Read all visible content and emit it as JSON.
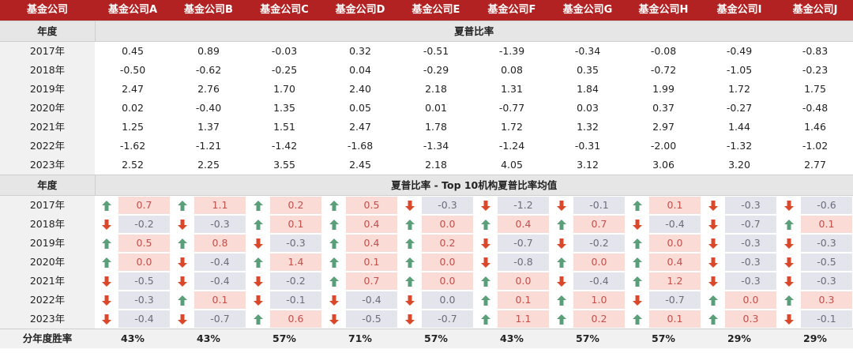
{
  "header": {
    "first_col": "基金公司",
    "companies": [
      "基金公司A",
      "基金公司B",
      "基金公司C",
      "基金公司D",
      "基金公司E",
      "基金公司F",
      "基金公司G",
      "基金公司H",
      "基金公司I",
      "基金公司J"
    ]
  },
  "section1": {
    "year_label": "年度",
    "title": "夏普比率",
    "years": [
      "2017年",
      "2018年",
      "2019年",
      "2020年",
      "2021年",
      "2022年",
      "2023年"
    ],
    "rows": [
      [
        "0.45",
        "0.89",
        "-0.03",
        "0.32",
        "-0.51",
        "-1.39",
        "-0.34",
        "-0.08",
        "-0.49",
        "-0.83"
      ],
      [
        "-0.50",
        "-0.62",
        "-0.25",
        "0.04",
        "-0.29",
        "0.08",
        "0.35",
        "-0.72",
        "-1.05",
        "-0.23"
      ],
      [
        "2.47",
        "2.76",
        "1.70",
        "2.40",
        "2.18",
        "1.31",
        "1.84",
        "1.99",
        "1.72",
        "1.75"
      ],
      [
        "0.02",
        "-0.40",
        "1.35",
        "0.05",
        "0.01",
        "-0.77",
        "0.03",
        "0.37",
        "-0.27",
        "-0.48"
      ],
      [
        "1.25",
        "1.37",
        "1.51",
        "2.47",
        "1.78",
        "1.72",
        "1.32",
        "2.97",
        "1.44",
        "1.46"
      ],
      [
        "-1.62",
        "-1.21",
        "-1.42",
        "-1.68",
        "-1.34",
        "-1.24",
        "-0.31",
        "-2.00",
        "-1.32",
        "-1.02"
      ],
      [
        "2.52",
        "2.25",
        "3.55",
        "2.45",
        "2.18",
        "4.05",
        "3.12",
        "3.06",
        "3.20",
        "2.77"
      ]
    ]
  },
  "section2": {
    "year_label": "年度",
    "title": "夏普比率 - Top 10机构夏普比率均值",
    "years": [
      "2017年",
      "2018年",
      "2019年",
      "2020年",
      "2021年",
      "2022年",
      "2023年"
    ],
    "rows": [
      [
        "0.7",
        "1.1",
        "0.2",
        "0.5",
        "-0.3",
        "-1.2",
        "-0.1",
        "0.1",
        "-0.3",
        "-0.6"
      ],
      [
        "-0.2",
        "-0.3",
        "0.1",
        "0.4",
        "0.0",
        "0.4",
        "0.7",
        "-0.4",
        "-0.7",
        "0.1"
      ],
      [
        "0.5",
        "0.8",
        "-0.3",
        "0.4",
        "0.2",
        "-0.7",
        "-0.2",
        "0.0",
        "-0.3",
        "-0.3"
      ],
      [
        "0.0",
        "-0.4",
        "1.4",
        "0.1",
        "0.0",
        "-0.8",
        "0.0",
        "0.4",
        "-0.3",
        "-0.5"
      ],
      [
        "-0.5",
        "-0.4",
        "-0.2",
        "0.7",
        "0.0",
        "0.0",
        "-0.4",
        "1.2",
        "-0.3",
        "-0.3"
      ],
      [
        "-0.3",
        "0.1",
        "-0.1",
        "-0.4",
        "0.0",
        "0.1",
        "1.0",
        "-0.7",
        "0.0",
        "0.3"
      ],
      [
        "-0.4",
        "-0.7",
        "0.6",
        "-0.5",
        "-0.7",
        "1.1",
        "0.2",
        "0.1",
        "0.3",
        "-0.1"
      ]
    ],
    "directions": [
      [
        "up",
        "up",
        "up",
        "up",
        "down",
        "down",
        "down",
        "up",
        "down",
        "down"
      ],
      [
        "down",
        "down",
        "up",
        "up",
        "up",
        "up",
        "up",
        "down",
        "down",
        "up"
      ],
      [
        "up",
        "up",
        "down",
        "up",
        "up",
        "down",
        "down",
        "up",
        "down",
        "down"
      ],
      [
        "up",
        "down",
        "up",
        "up",
        "up",
        "down",
        "up",
        "up",
        "down",
        "down"
      ],
      [
        "down",
        "down",
        "down",
        "up",
        "up",
        "up",
        "down",
        "up",
        "down",
        "down"
      ],
      [
        "down",
        "up",
        "down",
        "down",
        "down",
        "up",
        "up",
        "down",
        "up",
        "up"
      ],
      [
        "down",
        "down",
        "up",
        "down",
        "down",
        "up",
        "up",
        "up",
        "up",
        "down"
      ]
    ]
  },
  "footer": {
    "label": "分年度胜率",
    "values": [
      "43%",
      "43%",
      "57%",
      "71%",
      "57%",
      "43%",
      "57%",
      "57%",
      "29%",
      "29%"
    ]
  },
  "colors": {
    "header_bg": "#b22222",
    "up_arrow": "#5a9e7a",
    "down_arrow": "#d9482b",
    "positive_fill": "#fadbd6",
    "negative_fill": "#e4e5ec"
  }
}
